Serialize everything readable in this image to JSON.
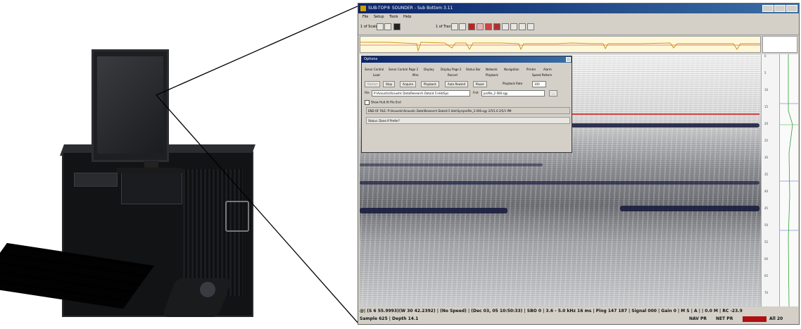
{
  "app": {
    "title": "SUB-TOP® SOUNDER - Sub Bottom 3.11",
    "menu": [
      "File",
      "Setup",
      "Tools",
      "Help"
    ],
    "toolbar": {
      "label_left": "1 of Scale",
      "label_mid": "1 of Track"
    }
  },
  "dialog": {
    "title": "Options",
    "tabs_row1": [
      "Sonar Control",
      "Sonar Control Page 2",
      "Display",
      "Display Page 2",
      "Status Bar",
      "Network",
      "Navigation",
      "Printer",
      "Alarm"
    ],
    "tabs_row2": [
      "Load",
      "Misc",
      "Record",
      "Playback",
      "Speed Pattern"
    ],
    "buttons": [
      "Restart",
      "Stop",
      "Acquire",
      "Playback",
      "Auto Rewind",
      "Pause"
    ],
    "playback_rate_label": "Playback Rate",
    "playback_rate_value": "100",
    "file_label": "File",
    "file_path": "P:\\Acoustic\\Acoustic Data\\Research Data\\4.5 kHz\\Sys",
    "file_name_label": "Fmt",
    "file_name_value": "profile_2 000.sgy",
    "browse_label": "...",
    "checkbox_label": "Show Huit At File End",
    "path_text": "END OF FILE: P:\\Acoustic\\Acoustic Data\\Research Data\\4.5 kHz\\Sys\\profile_2 000.sgy     2/5/1.6     2/5/1 PM",
    "status_text": "Status: Done If Prefer?"
  },
  "status": {
    "line1": "@| (S 6 55.9993)(W 30 42.2392) | (No Speed) | (Dec 03, 05 10:50:33) | SBO 0 | 3.6 - 5.0 kHz 16 ms | Ping 147 187 | Signal 000 | Gain 0 | M S | A | | 0.0 M | RC -23.9",
    "line2": "Sample 625 | Depth 14.1",
    "nav": "NAV PR",
    "net": "NET PR",
    "zoom": "All 20"
  },
  "depth_ticks": [
    "0",
    "5",
    "10",
    "15",
    "20",
    "25",
    "30",
    "35",
    "40",
    "45",
    "50",
    "55",
    "60",
    "65",
    "70"
  ],
  "colors": {
    "title_bar": "#0a246a",
    "alarm": "#b01010",
    "echo_band": "#14163a"
  }
}
